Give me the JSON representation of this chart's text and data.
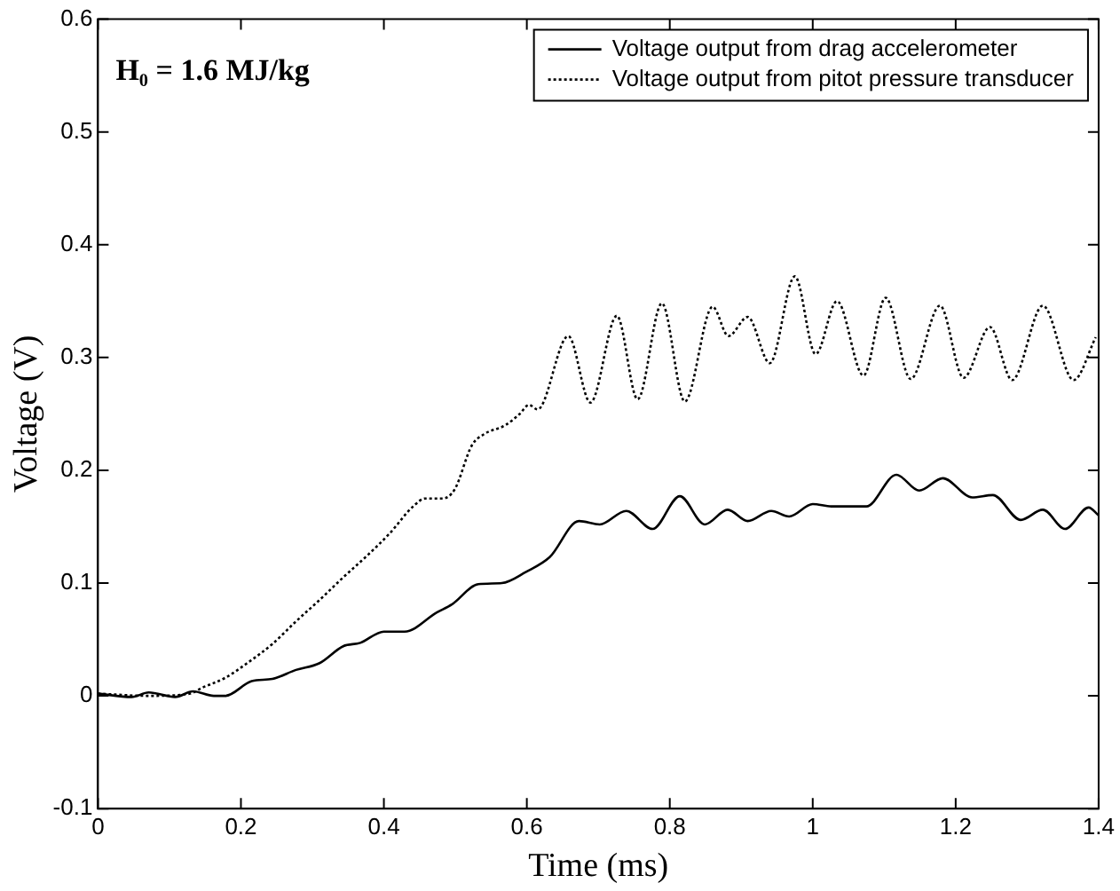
{
  "chart_data": {
    "type": "line",
    "xlabel": "Time (ms)",
    "ylabel": "Voltage (V)",
    "annotations": [
      "H₀ = 1.6 MJ/kg"
    ],
    "xlim": [
      0,
      1.4
    ],
    "xticks": [
      0,
      0.2,
      0.4,
      0.6,
      0.8,
      1,
      1.2,
      1.4
    ],
    "ylim": [
      -0.1,
      0.6
    ],
    "yticks": [
      -0.1,
      0,
      0.1,
      0.2,
      0.3,
      0.4,
      0.5,
      0.6
    ],
    "grid": false,
    "legend": "top right",
    "marker": "none",
    "series": [
      {
        "name": "Voltage output from drag accelerometer",
        "color": "#000000",
        "line_style": "solid",
        "x": [
          0,
          0.047,
          0.071,
          0.108,
          0.133,
          0.162,
          0.178,
          0.215,
          0.244,
          0.277,
          0.31,
          0.343,
          0.367,
          0.4,
          0.429,
          0.474,
          0.495,
          0.532,
          0.565,
          0.599,
          0.632,
          0.673,
          0.702,
          0.739,
          0.776,
          0.814,
          0.849,
          0.881,
          0.909,
          0.942,
          0.967,
          1.0,
          1.026,
          1.075,
          1.117,
          1.149,
          1.182,
          1.223,
          1.252,
          1.291,
          1.322,
          1.353,
          1.386,
          1.4
        ],
        "values": [
          0.002,
          -0.001,
          0.003,
          -0.001,
          0.004,
          0,
          0,
          0.013,
          0.015,
          0.023,
          0.029,
          0.044,
          0.047,
          0.057,
          0.057,
          0.074,
          0.081,
          0.099,
          0.1,
          0.11,
          0.123,
          0.155,
          0.152,
          0.164,
          0.148,
          0.177,
          0.152,
          0.165,
          0.155,
          0.164,
          0.159,
          0.17,
          0.168,
          0.168,
          0.196,
          0.182,
          0.193,
          0.176,
          0.178,
          0.156,
          0.165,
          0.148,
          0.167,
          0.16
        ]
      },
      {
        "name": "Voltage output from pitot pressure transducer",
        "color": "#000000",
        "line_style": "dotted",
        "x": [
          0,
          0.071,
          0.129,
          0.145,
          0.178,
          0.211,
          0.244,
          0.277,
          0.31,
          0.343,
          0.376,
          0.408,
          0.441,
          0.458,
          0.482,
          0.499,
          0.523,
          0.54,
          0.57,
          0.59,
          0.603,
          0.615,
          0.658,
          0.689,
          0.726,
          0.755,
          0.789,
          0.821,
          0.86,
          0.882,
          0.909,
          0.94,
          0.975,
          1.004,
          1.034,
          1.071,
          1.102,
          1.137,
          1.178,
          1.211,
          1.248,
          1.279,
          1.322,
          1.365,
          1.396
        ],
        "values": [
          0.002,
          0,
          0.002,
          0.007,
          0.016,
          0.03,
          0.046,
          0.066,
          0.085,
          0.105,
          0.124,
          0.144,
          0.168,
          0.175,
          0.175,
          0.183,
          0.222,
          0.232,
          0.24,
          0.25,
          0.258,
          0.254,
          0.319,
          0.26,
          0.337,
          0.263,
          0.348,
          0.261,
          0.345,
          0.319,
          0.336,
          0.295,
          0.372,
          0.303,
          0.35,
          0.284,
          0.353,
          0.281,
          0.346,
          0.282,
          0.327,
          0.28,
          0.346,
          0.28,
          0.318
        ]
      }
    ]
  }
}
